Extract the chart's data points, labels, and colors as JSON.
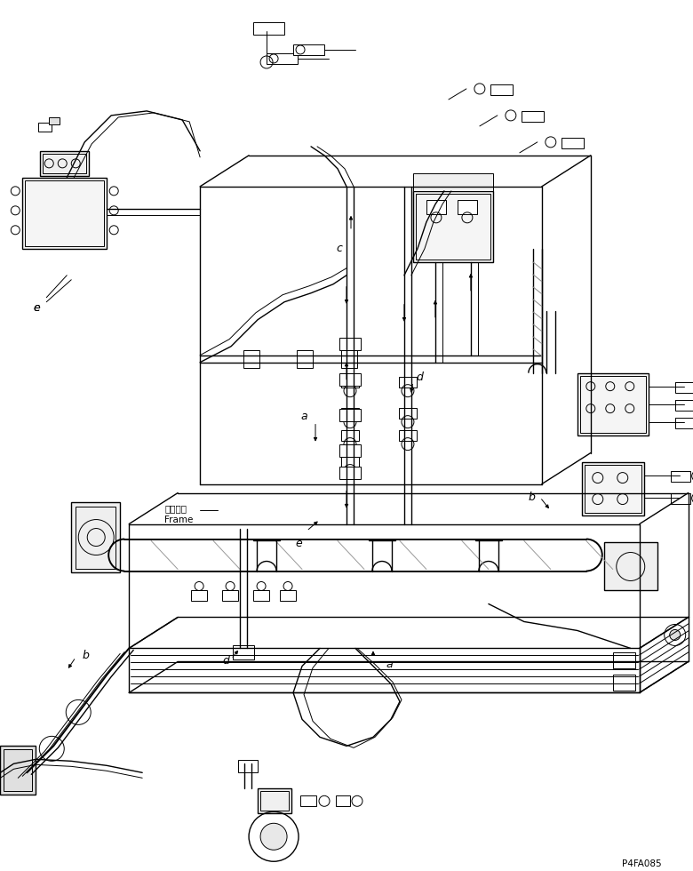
{
  "bg_color": "#ffffff",
  "line_color": "#000000",
  "fig_width": 7.8,
  "fig_height": 9.8,
  "dpi": 100,
  "part_number": "P4FA085",
  "frame_label_jp": "フレーム",
  "frame_label_en": "Frame"
}
